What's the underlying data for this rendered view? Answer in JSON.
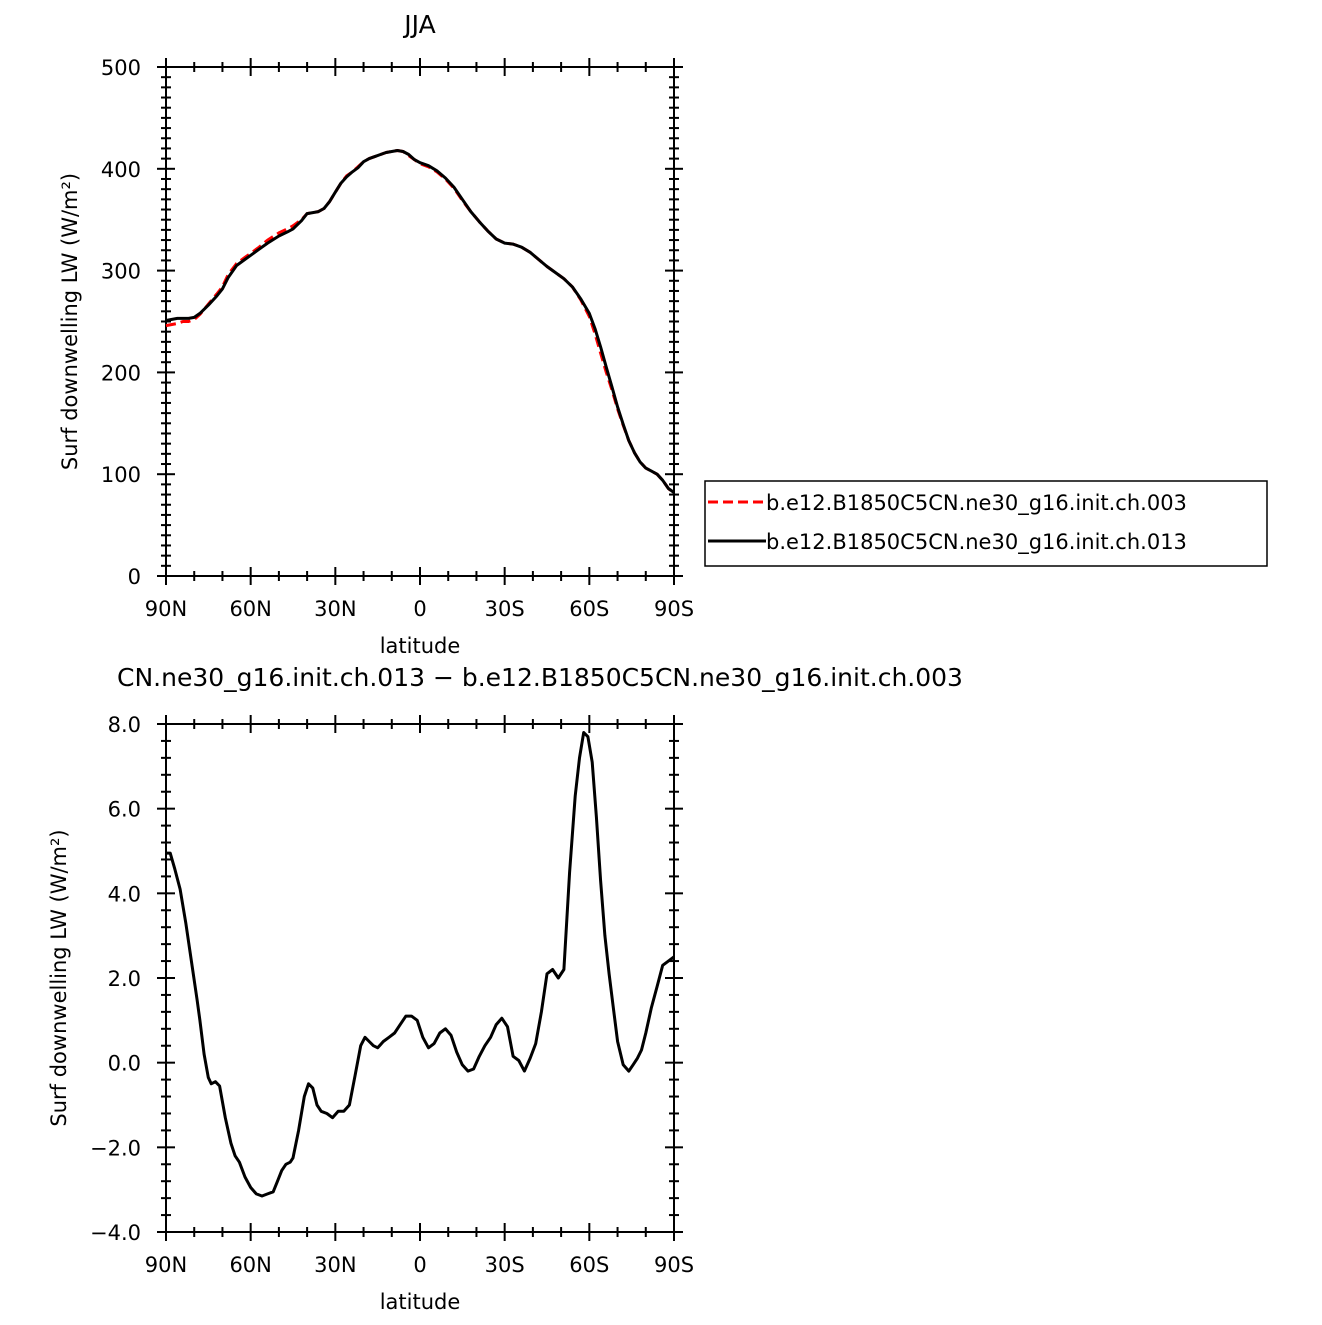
{
  "chart_data": [
    {
      "type": "line",
      "title": "JJA",
      "xlabel": "latitude",
      "ylabel": "Surf downwelling LW (W/m²)",
      "xlim": [
        90,
        -90
      ],
      "ylim": [
        0,
        500
      ],
      "x_tick_values": [
        90,
        60,
        30,
        0,
        -30,
        -60,
        -90
      ],
      "x_tick_labels": [
        "90N",
        "60N",
        "30N",
        "0",
        "30S",
        "60S",
        "90S"
      ],
      "y_tick_values": [
        0,
        100,
        200,
        300,
        400,
        500
      ],
      "y_tick_labels": [
        "0",
        "100",
        "200",
        "300",
        "400",
        "500"
      ],
      "legend_position": "right-outside",
      "series": [
        {
          "name": "b.e12.B1850C5CN.ne30_g16.init.ch.003",
          "color": "#ff0000",
          "style": "dashed",
          "x": [
            90,
            86,
            84,
            82,
            80,
            78,
            75,
            72,
            70,
            68,
            65,
            62,
            60,
            57,
            54,
            50,
            47,
            45,
            42,
            40,
            38,
            36,
            34,
            32,
            30,
            28,
            26,
            24,
            22,
            20,
            18,
            16,
            14,
            12,
            10,
            8,
            6,
            4,
            2,
            0,
            -3,
            -6,
            -9,
            -12,
            -15,
            -18,
            -21,
            -24,
            -27,
            -30,
            -33,
            -36,
            -39,
            -42,
            -45,
            -48,
            -51,
            -54,
            -57,
            -60,
            -62,
            -64,
            -66,
            -68,
            -70,
            -72,
            -74,
            -76,
            -78,
            -80,
            -82,
            -84,
            -86,
            -88,
            -90
          ],
          "y": [
            246,
            248,
            250,
            250,
            252,
            257,
            267,
            277,
            284,
            296,
            307,
            313,
            317,
            323,
            330,
            337,
            341,
            344,
            350,
            356,
            357,
            358,
            361,
            368,
            377,
            386,
            393,
            397,
            402,
            407,
            410,
            412,
            414,
            416,
            417,
            418,
            417,
            413,
            409,
            405,
            402,
            397,
            390,
            381,
            369,
            358,
            348,
            339,
            331,
            327,
            326,
            323,
            318,
            311,
            304,
            298,
            292,
            284,
            271,
            255,
            238,
            219,
            200,
            183,
            164,
            148,
            133,
            121,
            112,
            106,
            103,
            100,
            94,
            86,
            81
          ]
        },
        {
          "name": "b.e12.B1850C5CN.ne30_g16.init.ch.013",
          "color": "#000000",
          "style": "solid",
          "x": [
            90,
            86,
            84,
            82,
            80,
            78,
            75,
            72,
            70,
            68,
            65,
            62,
            60,
            57,
            54,
            50,
            47,
            45,
            42,
            40,
            38,
            36,
            34,
            32,
            30,
            28,
            26,
            24,
            22,
            20,
            18,
            16,
            14,
            12,
            10,
            8,
            6,
            4,
            2,
            0,
            -3,
            -6,
            -9,
            -12,
            -15,
            -18,
            -21,
            -24,
            -27,
            -30,
            -33,
            -36,
            -39,
            -42,
            -45,
            -48,
            -51,
            -54,
            -57,
            -60,
            -62,
            -64,
            -66,
            -68,
            -70,
            -72,
            -74,
            -76,
            -78,
            -80,
            -82,
            -84,
            -86,
            -88,
            -90
          ],
          "y": [
            251,
            253,
            253,
            253,
            254,
            258,
            266,
            275,
            282,
            293,
            305,
            311,
            315,
            321,
            327,
            334,
            338,
            341,
            349,
            356,
            357,
            358,
            361,
            368,
            377,
            386,
            392,
            397,
            401,
            407,
            410,
            412,
            414,
            416,
            417,
            418,
            417,
            414,
            409,
            406,
            403,
            398,
            391,
            382,
            370,
            358,
            348,
            339,
            331,
            327,
            326,
            323,
            318,
            311,
            304,
            298,
            292,
            284,
            272,
            258,
            243,
            225,
            205,
            186,
            166,
            149,
            133,
            121,
            112,
            106,
            103,
            100,
            94,
            86,
            82
          ]
        }
      ]
    },
    {
      "type": "line",
      "title": "CN.ne30_g16.init.ch.013 − b.e12.B1850C5CN.ne30_g16.init.ch.003",
      "xlabel": "latitude",
      "ylabel": "Surf downwelling LW (W/m²)",
      "xlim": [
        90,
        -90
      ],
      "ylim": [
        -4,
        8
      ],
      "x_tick_values": [
        90,
        60,
        30,
        0,
        -30,
        -60,
        -90
      ],
      "x_tick_labels": [
        "90N",
        "60N",
        "30N",
        "0",
        "30S",
        "60S",
        "90S"
      ],
      "y_tick_values": [
        -4,
        -2,
        0,
        2,
        4,
        6,
        8
      ],
      "y_tick_labels": [
        "−4.0",
        "−2.0",
        "0.0",
        "2.0",
        "4.0",
        "6.0",
        "8.0"
      ],
      "series": [
        {
          "color": "#000000",
          "style": "solid",
          "x": [
            90,
            88.5,
            87,
            85,
            83,
            81,
            79,
            78,
            76.5,
            75,
            74,
            72.5,
            71,
            69,
            67,
            65.5,
            64,
            62,
            60,
            58,
            56,
            54,
            52,
            50.5,
            49,
            47.5,
            46,
            45,
            43,
            41,
            39.5,
            38,
            36.5,
            35,
            33,
            31,
            29,
            27,
            25,
            23,
            21,
            19.5,
            18,
            16.5,
            15,
            13,
            11,
            9,
            7,
            5,
            3,
            1,
            -1,
            -3,
            -5,
            -7,
            -9,
            -11,
            -13,
            -15,
            -17,
            -19,
            -21,
            -23,
            -25,
            -27,
            -29,
            -31,
            -33,
            -35,
            -37,
            -39,
            -41,
            -43,
            -45,
            -47,
            -49,
            -51,
            -53,
            -55,
            -56.5,
            -58,
            -59.5,
            -61,
            -62.5,
            -64,
            -65.5,
            -67,
            -68.5,
            -70,
            -72,
            -74,
            -75.5,
            -77,
            -78.5,
            -80,
            -82,
            -84,
            -86,
            -88,
            -90
          ],
          "y": [
            4.95,
            4.95,
            4.6,
            4.1,
            3.3,
            2.4,
            1.5,
            1.0,
            0.2,
            -0.35,
            -0.5,
            -0.45,
            -0.55,
            -1.3,
            -1.9,
            -2.2,
            -2.35,
            -2.7,
            -2.95,
            -3.1,
            -3.15,
            -3.1,
            -3.05,
            -2.8,
            -2.55,
            -2.4,
            -2.35,
            -2.25,
            -1.6,
            -0.8,
            -0.5,
            -0.6,
            -1.0,
            -1.15,
            -1.2,
            -1.3,
            -1.15,
            -1.15,
            -1.0,
            -0.3,
            0.4,
            0.6,
            0.5,
            0.4,
            0.35,
            0.5,
            0.6,
            0.7,
            0.9,
            1.1,
            1.1,
            1.0,
            0.6,
            0.35,
            0.45,
            0.7,
            0.8,
            0.65,
            0.25,
            -0.05,
            -0.2,
            -0.15,
            0.15,
            0.4,
            0.6,
            0.9,
            1.05,
            0.85,
            0.15,
            0.05,
            -0.2,
            0.1,
            0.45,
            1.2,
            2.1,
            2.2,
            2.0,
            2.2,
            4.5,
            6.3,
            7.2,
            7.8,
            7.7,
            7.1,
            5.8,
            4.3,
            3.0,
            2.1,
            1.3,
            0.5,
            -0.05,
            -0.2,
            -0.05,
            0.1,
            0.3,
            0.7,
            1.3,
            1.8,
            2.3,
            2.4,
            2.5
          ]
        }
      ]
    }
  ]
}
